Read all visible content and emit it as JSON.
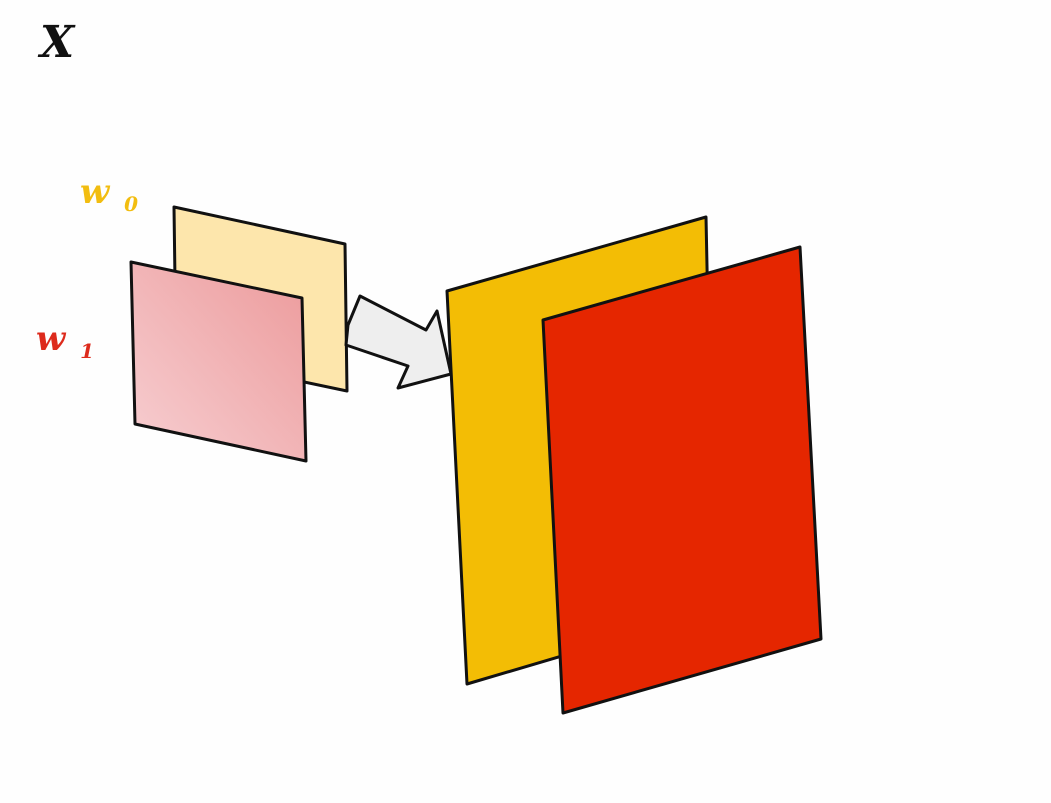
{
  "title": {
    "text": "X",
    "color": "#111111"
  },
  "labels": {
    "w0": {
      "main": "w",
      "sub": "0",
      "color": "#f2bd10"
    },
    "w1": {
      "main": "w",
      "sub": "1",
      "color": "#dd2a1c"
    }
  },
  "colors": {
    "small_back_fill": "#fde6ac",
    "small_front_fill_start": "#f7cfd2",
    "small_front_fill_end": "#ec9a9b",
    "arrow_fill": "#eeeeee",
    "big_back_fill": "#f3bd05",
    "big_front_fill": "#e52600",
    "outline": "#111111"
  },
  "icons": {
    "arrow": "arrow-right-icon"
  }
}
